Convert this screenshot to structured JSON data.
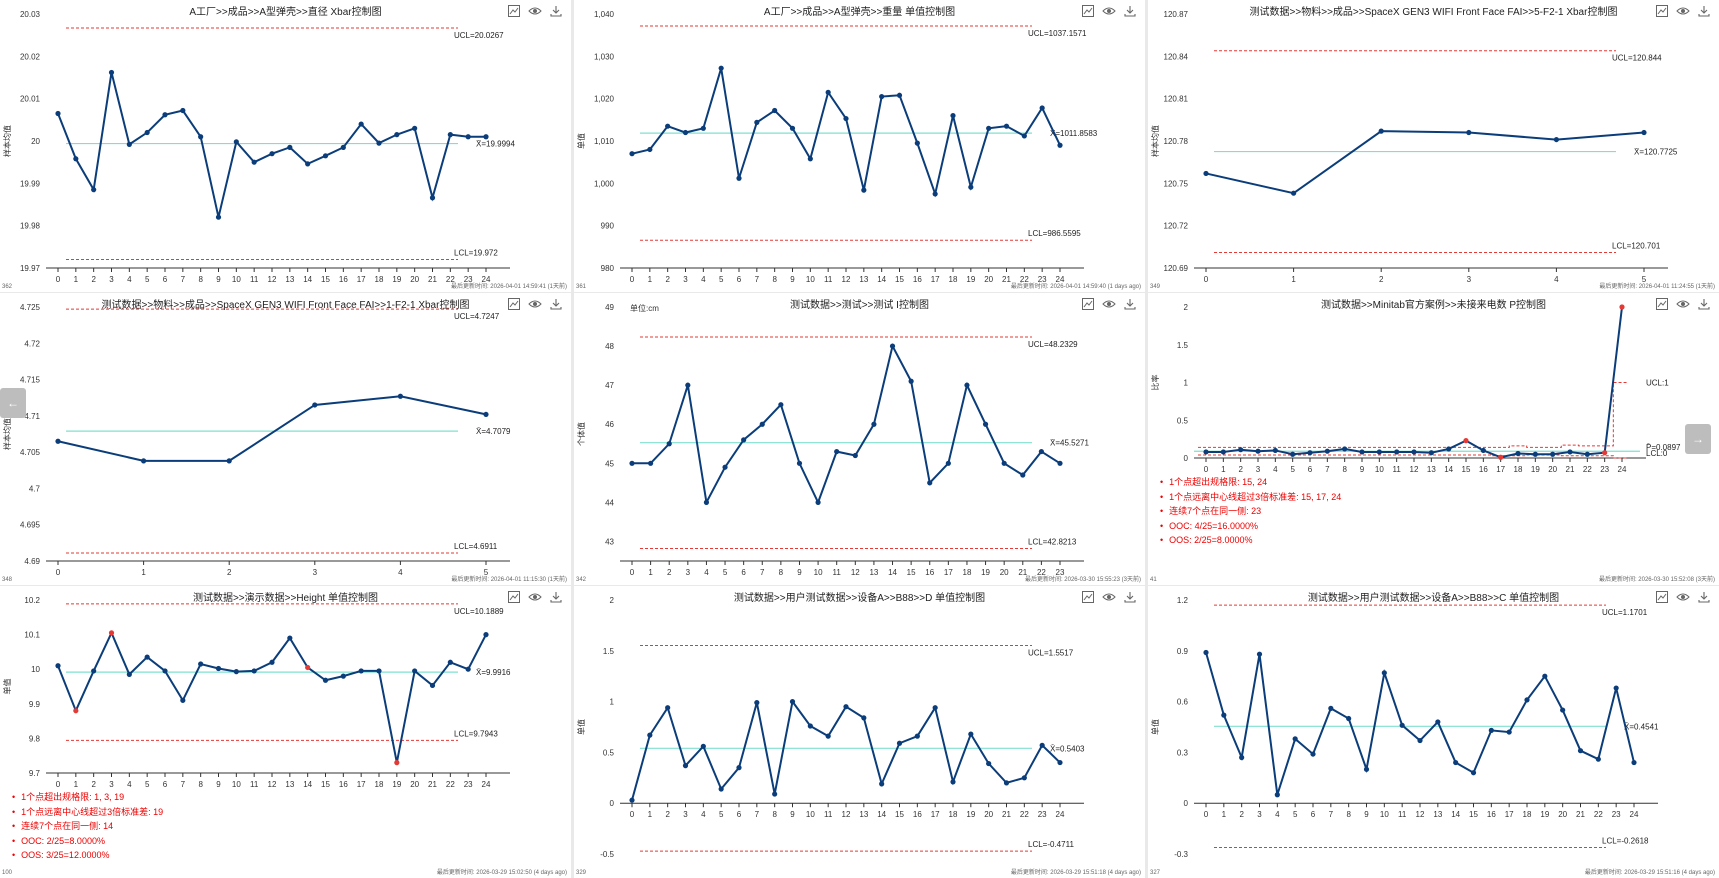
{
  "nav": {
    "prev": "←",
    "next": "→"
  },
  "colors": {
    "line": "#0b3d7a",
    "center": "#7fe0d0",
    "limit": "#e53935",
    "alarm": "#e53935",
    "axis": "#333333"
  },
  "panels": [
    {
      "title": "A工厂>>成品>>A型弹壳>>直径 Xbar控制图",
      "id": "362",
      "updated": "最后更新时间: 2026-04-01 14:59:41 (1天前)",
      "chart_data": {
        "type": "line",
        "ylabel": "样本均值",
        "ylim": [
          19.97,
          20.03
        ],
        "yticks": [
          19.97,
          19.98,
          19.99,
          20,
          20.01,
          20.02,
          20.03
        ],
        "ytick_labels": [
          "19.97",
          "19.98",
          "19.99",
          "20",
          "20.01",
          "20.02",
          "20.03"
        ],
        "x": [
          0,
          1,
          2,
          3,
          4,
          5,
          6,
          7,
          8,
          9,
          10,
          11,
          12,
          13,
          14,
          15,
          16,
          17,
          18,
          19,
          20,
          21,
          22,
          23,
          24
        ],
        "values": [
          20.0065,
          19.9958,
          19.9885,
          20.0162,
          19.9992,
          20.002,
          20.0062,
          20.0072,
          20.001,
          19.982,
          19.9998,
          19.995,
          19.997,
          19.9985,
          19.9946,
          19.9965,
          19.9985,
          20.004,
          19.9995,
          20.0015,
          20.003,
          19.9866,
          20.0015,
          20.001,
          20.001
        ],
        "ucl": 20.0267,
        "cl": 19.9994,
        "lcl": 19.972,
        "ucl_label": "UCL=20.0267",
        "cl_label": "X̄=19.9994",
        "lcl_label": "LCL=19.972",
        "alarms": []
      }
    },
    {
      "title": "A工厂>>成品>>A型弹壳>>重量 单值控制图",
      "id": "361",
      "updated": "最后更新时间: 2026-04-01 14:59:40 (1 days ago)",
      "chart_data": {
        "type": "line",
        "ylabel": "单值",
        "ylim": [
          980,
          1040
        ],
        "yticks": [
          980,
          990,
          1000,
          1010,
          1020,
          1030,
          1040
        ],
        "ytick_labels": [
          "980",
          "990",
          "1,000",
          "1,010",
          "1,020",
          "1,030",
          "1,040"
        ],
        "x": [
          0,
          1,
          2,
          3,
          4,
          5,
          6,
          7,
          8,
          9,
          10,
          11,
          12,
          13,
          14,
          15,
          16,
          17,
          18,
          19,
          20,
          21,
          22,
          23,
          24
        ],
        "values": [
          1007,
          1008,
          1013.5,
          1012,
          1013,
          1027.2,
          1001.2,
          1014.4,
          1017.2,
          1013,
          1005.8,
          1021.5,
          1015.3,
          998.4,
          1020.5,
          1020.8,
          1009.5,
          997.5,
          1016,
          999.1,
          1013,
          1013.5,
          1011.2,
          1017.8,
          1009
        ],
        "ucl": 1037.1571,
        "cl": 1011.8583,
        "lcl": 986.5595,
        "ucl_label": "UCL=1037.1571",
        "cl_label": "X̄=1011.8583",
        "lcl_label": "LCL=986.5595",
        "alarms": []
      }
    },
    {
      "title": "测试数据>>物料>>成品>>SpaceX GEN3 WIFI Front Face  FAI>>5-F2-1 Xbar控制图",
      "id": "349",
      "updated": "最后更新时间: 2026-04-01 11:24:55 (1天前)",
      "chart_data": {
        "type": "line",
        "ylabel": "样本均值",
        "ylim": [
          120.69,
          120.87
        ],
        "yticks": [
          120.69,
          120.72,
          120.75,
          120.78,
          120.81,
          120.84,
          120.87
        ],
        "ytick_labels": [
          "120.69",
          "120.72",
          "120.75",
          "120.78",
          "120.81",
          "120.84",
          "120.87"
        ],
        "x": [
          0,
          1,
          2,
          3,
          4,
          5
        ],
        "values": [
          120.757,
          120.743,
          120.787,
          120.786,
          120.781,
          120.786
        ],
        "ucl": 120.844,
        "cl": 120.7725,
        "lcl": 120.701,
        "ucl_label": "UCL=120.844",
        "cl_label": "X̄=120.7725",
        "lcl_label": "LCL=120.701",
        "alarms": []
      }
    },
    {
      "title": "测试数据>>物料>>成品>>SpaceX GEN3 WIFI Front Face  FAI>>1-F2-1 Xbar控制图",
      "id": "348",
      "updated": "最后更新时间: 2026-04-01 11:15:30 (1天前)",
      "chart_data": {
        "type": "line",
        "ylabel": "样本均值",
        "ylim": [
          4.69,
          4.725
        ],
        "yticks": [
          4.69,
          4.695,
          4.7,
          4.705,
          4.71,
          4.715,
          4.72,
          4.725
        ],
        "ytick_labels": [
          "4.69",
          "4.695",
          "4.7",
          "4.705",
          "4.71",
          "4.715",
          "4.72",
          "4.725"
        ],
        "x": [
          0,
          1,
          2,
          3,
          4,
          5
        ],
        "values": [
          4.7065,
          4.7038,
          4.7038,
          4.7115,
          4.7127,
          4.7102
        ],
        "ucl": 4.7247,
        "cl": 4.7079,
        "lcl": 4.6911,
        "ucl_label": "UCL=4.7247",
        "cl_label": "X̄=4.7079",
        "lcl_label": "LCL=4.6911",
        "alarms": []
      }
    },
    {
      "title": "测试数据>>测试>>测试 I控制图",
      "id": "342",
      "updated": "最后更新时间: 2026-03-30 15:55:23 (3天前)",
      "unit": "单位:cm",
      "chart_data": {
        "type": "line",
        "ylabel": "个体值",
        "ylim": [
          42.5,
          49
        ],
        "yticks": [
          43,
          44,
          45,
          46,
          47,
          48,
          49
        ],
        "ytick_labels": [
          "43",
          "44",
          "45",
          "46",
          "47",
          "48",
          "49"
        ],
        "x": [
          0,
          1,
          2,
          3,
          4,
          5,
          6,
          7,
          8,
          9,
          10,
          11,
          12,
          13,
          14,
          15,
          16,
          17,
          18,
          19,
          20,
          21,
          22,
          23
        ],
        "values": [
          45,
          45,
          45.5,
          47,
          44,
          44.9,
          45.6,
          46,
          46.5,
          45,
          44,
          45.3,
          45.2,
          46,
          48,
          47.1,
          44.5,
          45,
          47,
          46,
          45,
          44.7,
          45.3,
          45
        ],
        "ucl": 48.2329,
        "cl": 45.5271,
        "lcl": 42.8213,
        "ucl_label": "UCL=48.2329",
        "cl_label": "X̄=45.5271",
        "lcl_label": "LCL=42.8213",
        "alarms": []
      }
    },
    {
      "title": "测试数据>>Minitab官方案例>>未接来电数 P控制图",
      "id": "41",
      "updated": "最后更新时间: 2026-03-30 15:52:08 (3天前)",
      "chart_data": {
        "type": "line",
        "ylabel": "比率",
        "ylim": [
          0,
          2
        ],
        "yticks": [
          0,
          0.5,
          1,
          1.5,
          2
        ],
        "ytick_labels": [
          "0",
          "0.5",
          "1",
          "1.5",
          "2"
        ],
        "x": [
          0,
          1,
          2,
          3,
          4,
          5,
          6,
          7,
          8,
          9,
          10,
          11,
          12,
          13,
          14,
          15,
          16,
          17,
          18,
          19,
          20,
          21,
          22,
          23,
          24
        ],
        "values": [
          0.08,
          0.08,
          0.11,
          0.09,
          0.1,
          0.05,
          0.07,
          0.09,
          0.12,
          0.08,
          0.08,
          0.08,
          0.08,
          0.07,
          0.12,
          0.23,
          0.1,
          0.01,
          0.06,
          0.05,
          0.05,
          0.08,
          0.05,
          0.07,
          2.0
        ],
        "ucl_step": [
          0.14,
          0.14,
          0.14,
          0.14,
          0.14,
          0.14,
          0.14,
          0.14,
          0.14,
          0.14,
          0.14,
          0.14,
          0.14,
          0.14,
          0.14,
          0.14,
          0.14,
          0.14,
          0.16,
          0.14,
          0.14,
          0.17,
          0.16,
          0.16,
          1.0
        ],
        "lcl_step": [
          0.04,
          0.04,
          0.04,
          0.04,
          0.04,
          0.04,
          0.04,
          0.04,
          0.04,
          0.04,
          0.04,
          0.04,
          0.04,
          0.04,
          0.04,
          0.04,
          0.04,
          0.03,
          0.03,
          0.04,
          0.04,
          0.03,
          0.03,
          0.03,
          0
        ],
        "ucl": 1,
        "cl": 0.0897,
        "lcl": 0,
        "ucl_label": "UCL:1",
        "cl_label": "P̄=0.0897",
        "lcl_label": "LCL:0",
        "alarms": [
          15,
          17,
          23,
          24
        ]
      },
      "notes": [
        "1个点超出规格限: 15, 24",
        "1个点远离中心线超过3倍标准差: 15, 17, 24",
        "连续7个点在同一侧: 23",
        "OOC: 4/25=16.0000%",
        "OOS: 2/25=8.0000%"
      ]
    },
    {
      "title": "测试数据>>演示数据>>Height 单值控制图",
      "id": "100",
      "updated": "最后更新时间: 2026-03-29 15:02:50 (4 days ago)",
      "chart_data": {
        "type": "line",
        "ylabel": "单值",
        "ylim": [
          9.7,
          10.2
        ],
        "yticks": [
          9.7,
          9.8,
          9.9,
          10,
          10.1,
          10.2
        ],
        "ytick_labels": [
          "9.7",
          "9.8",
          "9.9",
          "10",
          "10.1",
          "10.2"
        ],
        "x": [
          0,
          1,
          2,
          3,
          4,
          5,
          6,
          7,
          8,
          9,
          10,
          11,
          12,
          13,
          14,
          15,
          16,
          17,
          18,
          19,
          20,
          21,
          22,
          23,
          24
        ],
        "values": [
          10.01,
          9.88,
          9.995,
          10.105,
          9.985,
          10.035,
          9.995,
          9.91,
          10.015,
          10.002,
          9.993,
          9.995,
          10.02,
          10.09,
          10.005,
          9.968,
          9.98,
          9.995,
          9.995,
          9.73,
          9.995,
          9.953,
          10.02,
          10.0,
          10.1
        ],
        "ucl": 10.1889,
        "cl": 9.9916,
        "lcl": 9.7943,
        "ucl_label": "UCL=10.1889",
        "cl_label": "X̄=9.9916",
        "lcl_label": "LCL=9.7943",
        "alarms": [
          1,
          3,
          14,
          19
        ]
      },
      "notes": [
        "1个点超出规格限: 1, 3, 19",
        "1个点远离中心线超过3倍标准差: 19",
        "连续7个点在同一侧: 14",
        "OOC: 2/25=8.0000%",
        "OOS: 3/25=12.0000%"
      ]
    },
    {
      "title": "测试数据>>用户测试数据>>设备A>>B88>>D 单值控制图",
      "id": "329",
      "updated": "最后更新时间: 2026-03-29 15:51:18 (4 days ago)",
      "chart_data": {
        "type": "line",
        "ylabel": "单值",
        "ylim": [
          -0.5,
          2
        ],
        "yticks": [
          -0.5,
          0,
          0.5,
          1,
          1.5,
          2
        ],
        "ytick_labels": [
          "-0.5",
          "0",
          "0.5",
          "1",
          "1.5",
          "2"
        ],
        "x": [
          0,
          1,
          2,
          3,
          4,
          5,
          6,
          7,
          8,
          9,
          10,
          11,
          12,
          13,
          14,
          15,
          16,
          17,
          18,
          19,
          20,
          21,
          22,
          23,
          24
        ],
        "values": [
          0.03,
          0.67,
          0.94,
          0.37,
          0.56,
          0.14,
          0.35,
          0.99,
          0.09,
          1.0,
          0.76,
          0.66,
          0.95,
          0.84,
          0.19,
          0.59,
          0.66,
          0.94,
          0.21,
          0.68,
          0.39,
          0.2,
          0.25,
          0.57,
          0.4
        ],
        "ucl": 1.5517,
        "cl": 0.5403,
        "lcl": -0.4711,
        "ucl_label": "UCL=1.5517",
        "cl_label": "X̄=0.5403",
        "lcl_label": "LCL=-0.4711",
        "alarms": []
      }
    },
    {
      "title": "测试数据>>用户测试数据>>设备A>>B88>>C 单值控制图",
      "id": "327",
      "updated": "最后更新时间: 2026-03-29 15:51:16 (4 days ago)",
      "chart_data": {
        "type": "line",
        "ylabel": "单值",
        "ylim": [
          -0.3,
          1.2
        ],
        "yticks": [
          -0.3,
          0,
          0.3,
          0.6,
          0.9,
          1.2
        ],
        "ytick_labels": [
          "-0.3",
          "0",
          "0.3",
          "0.6",
          "0.9",
          "1.2"
        ],
        "x": [
          0,
          1,
          2,
          3,
          4,
          5,
          6,
          7,
          8,
          9,
          10,
          11,
          12,
          13,
          14,
          15,
          16,
          17,
          18,
          19,
          20,
          21,
          22,
          23,
          24
        ],
        "values": [
          0.89,
          0.52,
          0.27,
          0.88,
          0.05,
          0.38,
          0.29,
          0.56,
          0.5,
          0.2,
          0.77,
          0.46,
          0.37,
          0.48,
          0.24,
          0.18,
          0.43,
          0.42,
          0.61,
          0.75,
          0.55,
          0.31,
          0.26,
          0.68,
          0.24
        ],
        "ucl": 1.1701,
        "cl": 0.4541,
        "lcl": -0.2618,
        "ucl_label": "UCL=1.1701",
        "cl_label": "X̄=0.4541",
        "lcl_label": "LCL=-0.2618",
        "alarms": []
      }
    }
  ]
}
